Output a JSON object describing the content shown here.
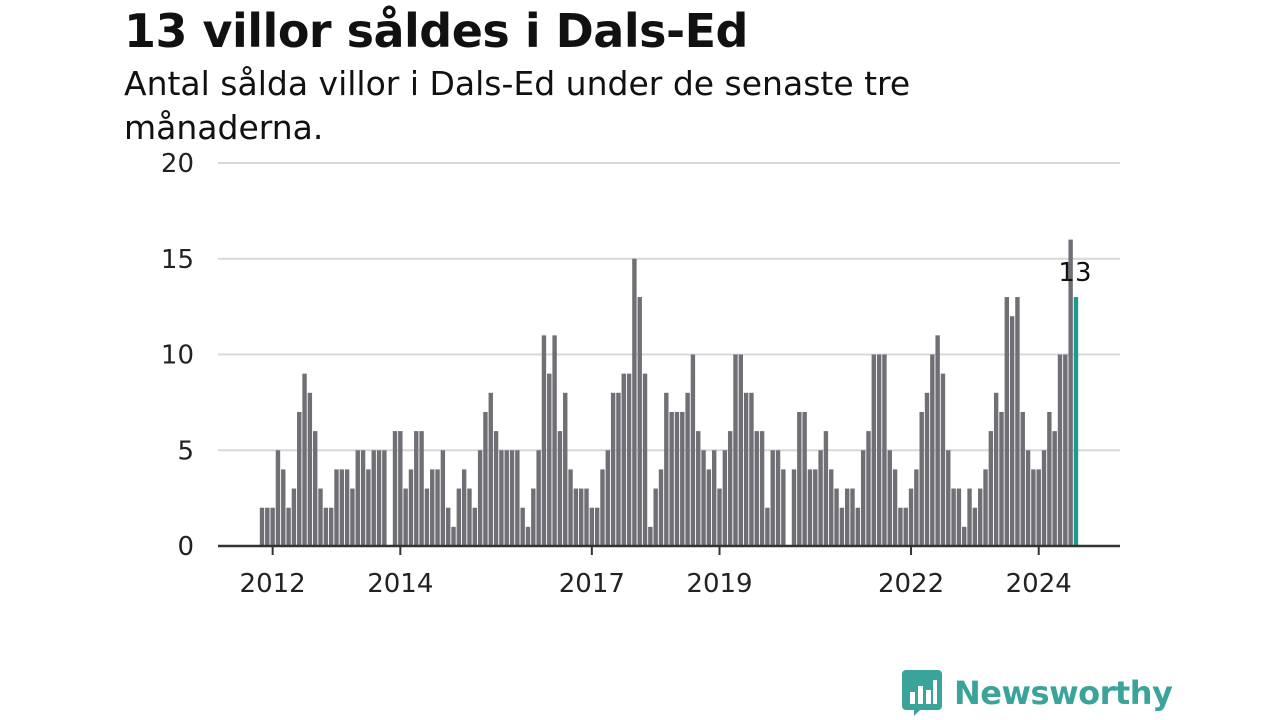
{
  "title": "13 villor såldes i Dals-Ed",
  "subtitle": "Antal sålda villor i Dals-Ed under de senaste tre månaderna.",
  "logo": {
    "text": "Newsworthy",
    "icon": "newsworthy-bar-chart-icon"
  },
  "colors": {
    "bars": "#6f6f75",
    "highlight": "#1a9a90",
    "grid": "#d8d8d8",
    "axis": "#333333",
    "logo": "#3aa39a"
  },
  "chart_data": {
    "type": "bar",
    "ylim": [
      0,
      20
    ],
    "yticks": [
      0,
      5,
      10,
      15,
      20
    ],
    "xtick_labels": [
      "2012",
      "2014",
      "2017",
      "2019",
      "2022",
      "2024"
    ],
    "xtick_positions": [
      "2012-01",
      "2014-01",
      "2017-01",
      "2019-01",
      "2022-01",
      "2024-01"
    ],
    "grid": true,
    "start": "2011-11",
    "values": [
      2,
      2,
      2,
      5,
      4,
      2,
      3,
      7,
      9,
      8,
      6,
      3,
      2,
      2,
      4,
      4,
      4,
      3,
      5,
      5,
      4,
      5,
      5,
      5,
      0,
      6,
      6,
      3,
      4,
      6,
      6,
      3,
      4,
      4,
      5,
      2,
      1,
      3,
      4,
      3,
      2,
      5,
      7,
      8,
      6,
      5,
      5,
      5,
      5,
      2,
      1,
      3,
      5,
      11,
      9,
      11,
      6,
      8,
      4,
      3,
      3,
      3,
      2,
      2,
      4,
      5,
      8,
      8,
      9,
      9,
      15,
      13,
      9,
      1,
      3,
      4,
      8,
      7,
      7,
      7,
      8,
      10,
      6,
      5,
      4,
      5,
      3,
      5,
      6,
      10,
      10,
      8,
      8,
      6,
      6,
      2,
      5,
      5,
      4,
      0,
      4,
      7,
      7,
      4,
      4,
      5,
      6,
      4,
      3,
      2,
      3,
      3,
      2,
      5,
      6,
      10,
      10,
      10,
      5,
      4,
      2,
      2,
      3,
      4,
      7,
      8,
      10,
      11,
      9,
      5,
      3,
      3,
      1,
      3,
      2,
      3,
      4,
      6,
      8,
      7,
      13,
      12,
      13,
      7,
      5,
      4,
      4,
      5,
      7,
      6,
      10,
      10,
      16,
      13
    ],
    "highlight_last": true,
    "last_value_label": "13"
  }
}
